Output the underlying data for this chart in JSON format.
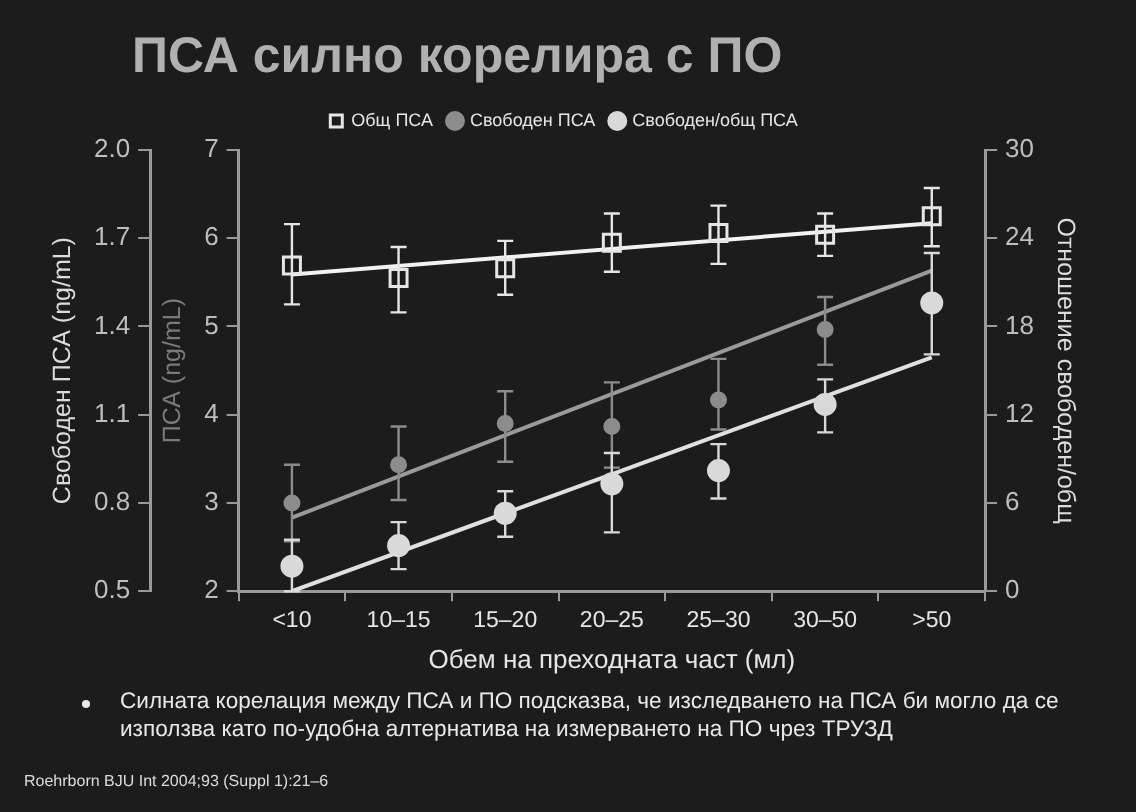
{
  "chart_data": {
    "type": "scatter",
    "title": "ПСА силно корелира с ПО",
    "xlabel": "Обем на преходната част (мл)",
    "ylabel": "Свободен ПСА (ng/mL)",
    "y2label": "Отношение свободен/общ",
    "y3label": "ПСА (ng/mL)",
    "categories": [
      "<10",
      "10–15",
      "15–20",
      "20–25",
      "25–30",
      "30–50",
      ">50"
    ],
    "series": [
      {
        "name": "Общ ПСА",
        "axis": "y3",
        "marker": "square",
        "color": "#e6e6e6",
        "values": [
          5.69,
          5.55,
          5.66,
          5.95,
          6.06,
          6.04,
          6.25
        ],
        "errors": [
          [
            5.25,
            6.16
          ],
          [
            5.16,
            5.9
          ],
          [
            5.36,
            5.97
          ],
          [
            5.62,
            6.28
          ],
          [
            5.71,
            6.37
          ],
          [
            5.8,
            6.28
          ],
          [
            5.91,
            6.57
          ]
        ]
      },
      {
        "name": "Свободен ПСА",
        "axis": "y",
        "marker": "circle",
        "color": "#8c8c8c",
        "values": [
          0.8,
          0.93,
          1.07,
          1.06,
          1.15,
          1.39,
          null
        ],
        "errors": [
          [
            0.67,
            0.93
          ],
          [
            0.81,
            1.06
          ],
          [
            0.94,
            1.18
          ],
          [
            0.92,
            1.21
          ],
          [
            1.05,
            1.29
          ],
          [
            1.27,
            1.5
          ],
          null
        ]
      },
      {
        "name": "Свободен/общ ПСА",
        "axis": "y2",
        "marker": "circle",
        "color": "#d9d9d9",
        "values": [
          1.7,
          3.1,
          5.3,
          7.3,
          8.2,
          12.7,
          19.6
        ],
        "errors": [
          [
            0,
            3.5
          ],
          [
            1.5,
            4.7
          ],
          [
            3.7,
            6.8
          ],
          [
            4,
            9.4
          ],
          [
            6.3,
            10
          ],
          [
            10.8,
            14.4
          ],
          [
            16.1,
            23
          ]
        ]
      },
      {
        "type": "line",
        "axis": "y3",
        "color": "#f2f2f2",
        "values": [
          5.59,
          null,
          null,
          null,
          null,
          null,
          6.17
        ]
      },
      {
        "type": "line",
        "axis": "y",
        "color": "#9a9a9a",
        "values": [
          0.75,
          null,
          null,
          null,
          null,
          null,
          1.59
        ]
      },
      {
        "type": "line",
        "axis": "y2",
        "color": "#e0e0e0",
        "values": [
          0,
          null,
          null,
          null,
          null,
          null,
          15.9
        ]
      }
    ],
    "ylim": [
      0.5,
      2
    ],
    "yticks": [
      0.5,
      0.8,
      1.1,
      1.4,
      1.7,
      {
        "value": 2,
        "label": "2.0"
      }
    ],
    "y2lim": [
      0,
      30
    ],
    "y2ticks": [
      0,
      6,
      12,
      18,
      24,
      30
    ],
    "y3lim": [
      2,
      7
    ],
    "y3ticks": [
      2,
      3,
      4,
      5,
      6,
      7
    ],
    "grid": false,
    "legend": "top",
    "annotations": [
      "Силната корелация между ПСА и ПО подсказва, че изследването на ПСА би могло да се използва като по-удобна алтернатива на измерването на ПО чрез ТРУЗД",
      "Roehrborn BJU Int 2004;93 (Suppl 1):21–6"
    ]
  }
}
